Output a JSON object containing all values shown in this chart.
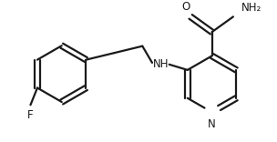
{
  "background": "#ffffff",
  "line_color": "#1a1a1a",
  "line_width": 1.6,
  "text_color": "#1a1a1a",
  "font_size": 8.5,
  "figsize": [
    3.04,
    1.56
  ],
  "dpi": 100,
  "xlim": [
    0,
    304
  ],
  "ylim": [
    0,
    156
  ]
}
